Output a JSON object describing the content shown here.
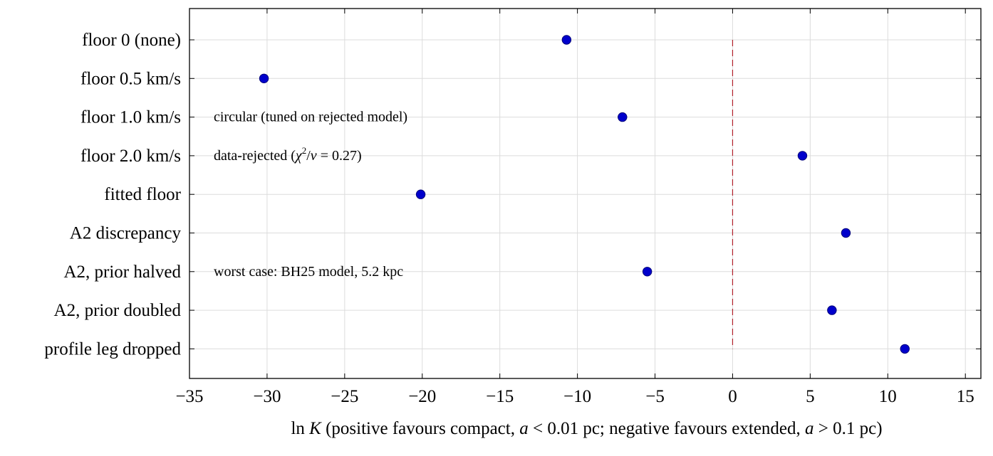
{
  "chart_data": {
    "type": "scatter",
    "orientation": "horizontal",
    "categories": [
      "floor 0 (none)",
      "floor 0.5 km/s",
      "floor 1.0 km/s",
      "floor 2.0 km/s",
      "fitted floor",
      "A2 discrepancy",
      "A2, prior halved",
      "A2, prior doubled",
      "profile leg dropped"
    ],
    "values": [
      -10.7,
      -30.2,
      -7.1,
      4.5,
      -20.1,
      7.3,
      -5.5,
      6.4,
      11.1
    ],
    "xlim": [
      -35,
      16
    ],
    "xticks": [
      -35,
      -30,
      -25,
      -20,
      -15,
      -10,
      -5,
      0,
      5,
      10,
      15
    ],
    "xtick_labels": [
      "−35",
      "−30",
      "−25",
      "−20",
      "−15",
      "−10",
      "−5",
      "0",
      "5",
      "10",
      "15"
    ],
    "reference_line": {
      "x": 0,
      "style": "dashed",
      "color": "#b0202a"
    },
    "xlabel": {
      "lead": "ln ",
      "lead_var": "K",
      "p1": " (positive favours compact, ",
      "var1": "a",
      "p2": " < 0.01 pc; negative favours extended, ",
      "var2": "a",
      "p3": " > 0.1 pc)"
    },
    "annotations": [
      {
        "category_index": 2,
        "text": "circular (tuned on rejected model)"
      },
      {
        "category_index": 3,
        "text_pre": "data-rejected (",
        "chi": "χ",
        "sup": "2",
        "text_mid": "/",
        "nu": "ν",
        "text_post": " = 0.27)"
      },
      {
        "category_index": 6,
        "text": "worst case: BH25 model, 5.2 kpc"
      }
    ],
    "grid": true,
    "marker_color": "#0000cc"
  }
}
